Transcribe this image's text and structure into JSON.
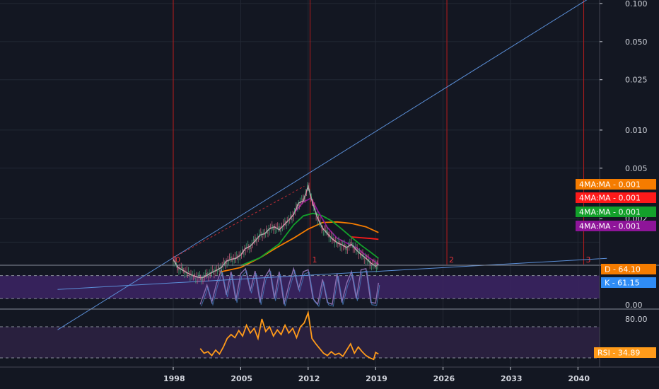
{
  "colors": {
    "background": "#131722",
    "grid": "#232834",
    "axis_text": "#d1d4dc",
    "cycle_line": "#b71c1c",
    "trend_line": "#5b8fd8",
    "price": "#c6aab9",
    "ma_orange": "#f57c00",
    "ma_red": "#ff1a1a",
    "ma_green": "#13a12b",
    "ma_purple": "#8e1599",
    "stoch_band": "#3b2362",
    "stoch_line": "#8b6fb0",
    "stoch_k": "#2f8cf5",
    "rsi_band": "#2a2140",
    "rsi_line": "#ff9b1a"
  },
  "chart_data": [
    {
      "type": "line",
      "pane": "price",
      "scale": "log",
      "y_axis_ticks": [
        "0.100",
        "0.050",
        "0.025",
        "0.010",
        "0.005",
        "0.002"
      ],
      "x_axis_ticks": [
        "1998",
        "2005",
        "2012",
        "2019",
        "2026",
        "2033",
        "2040"
      ],
      "xlim": [
        1998,
        2041
      ],
      "ylim": [
        0.0004,
        0.11
      ],
      "cycle_markers": [
        {
          "label": "0",
          "x": 1998
        },
        {
          "label": "1",
          "x": 2012.2
        },
        {
          "label": "2",
          "x": 2026.4
        },
        {
          "label": "3",
          "x": 2040.6
        }
      ],
      "series": [
        {
          "name": "price",
          "x": [
            1998,
            1998.5,
            1999,
            1999.5,
            2000,
            2000.5,
            2001,
            2001.5,
            2002,
            2002.5,
            2003,
            2003.5,
            2004,
            2004.5,
            2005,
            2005.5,
            2006,
            2006.5,
            2007,
            2007.5,
            2008,
            2008.5,
            2009,
            2009.5,
            2010,
            2010.5,
            2011,
            2011.5,
            2012,
            2012.5,
            2013,
            2013.5,
            2014,
            2014.5,
            2015,
            2015.5,
            2016,
            2016.5,
            2017,
            2017.5,
            2018,
            2018.5,
            2019,
            2019.3
          ],
          "y": [
            0.00095,
            0.00082,
            0.00078,
            0.00074,
            0.00071,
            0.00069,
            0.00068,
            0.00071,
            0.00075,
            0.00078,
            0.00082,
            0.00092,
            0.00095,
            0.00097,
            0.00103,
            0.00116,
            0.00121,
            0.00133,
            0.00148,
            0.00152,
            0.00166,
            0.00172,
            0.00163,
            0.00178,
            0.00195,
            0.00215,
            0.00265,
            0.00275,
            0.0036,
            0.0026,
            0.002,
            0.00168,
            0.00152,
            0.00138,
            0.00129,
            0.00124,
            0.00118,
            0.00125,
            0.00113,
            0.00104,
            0.00097,
            0.00089,
            0.00084,
            0.00087
          ]
        },
        {
          "name": "4MA:MA",
          "value": "0.001",
          "color": "#f57c00",
          "x": [
            2003,
            2005,
            2007,
            2009,
            2010.5,
            2012,
            2013.5,
            2015,
            2016.5,
            2018,
            2019.3
          ],
          "y": [
            0.00076,
            0.00082,
            0.00098,
            0.00121,
            0.0014,
            0.00165,
            0.00186,
            0.00188,
            0.00183,
            0.00172,
            0.00155
          ]
        },
        {
          "name": "4MA:MA",
          "value": "0.001",
          "color": "#ff1a1a",
          "x": [
            2016.5,
            2017.5,
            2018.5,
            2019.3
          ],
          "y": [
            0.00143,
            0.00141,
            0.00139,
            0.00137
          ]
        },
        {
          "name": "4MA:MA",
          "value": "0.001",
          "color": "#13a12b",
          "x": [
            2005,
            2007,
            2009,
            2010.5,
            2011.5,
            2012.5,
            2013.5,
            2014.5,
            2015.5,
            2016.5,
            2017.5,
            2018.5,
            2019.3
          ],
          "y": [
            0.00085,
            0.00098,
            0.00126,
            0.00178,
            0.0021,
            0.0022,
            0.0021,
            0.0019,
            0.00165,
            0.00142,
            0.00123,
            0.00108,
            0.00097
          ]
        },
        {
          "name": "4MA:MA",
          "value": "0.001",
          "color": "#8e1599",
          "x": [
            2010.5,
            2011.5,
            2012.3,
            2013,
            2014,
            2015,
            2016,
            2017,
            2018,
            2019.3
          ],
          "y": [
            0.0022,
            0.0027,
            0.0029,
            0.0023,
            0.0017,
            0.0014,
            0.00128,
            0.00118,
            0.00102,
            0.00087
          ]
        }
      ],
      "trend_lines": [
        {
          "x": [
            1998,
            2041
          ],
          "y": [
            0.00098,
            0.108
          ]
        },
        {
          "x": [
            1998,
            2041
          ],
          "y": [
            0.00062,
            0.00095
          ]
        }
      ]
    },
    {
      "type": "line",
      "pane": "stochastic",
      "y_axis_ticks": [
        "0.00"
      ],
      "band": [
        20,
        80
      ],
      "series": [
        {
          "name": "D",
          "value": "64.10",
          "color": "#f57c00"
        },
        {
          "name": "K",
          "value": "61.15",
          "color": "#2f8cf5",
          "x": [
            2000.8,
            2001.5,
            2002,
            2002.5,
            2003,
            2003.5,
            2004,
            2004.5,
            2005,
            2005.5,
            2006,
            2006.5,
            2007,
            2007.5,
            2008,
            2008.5,
            2009,
            2009.5,
            2010,
            2010.5,
            2011,
            2011.5,
            2012,
            2012.5,
            2013,
            2013.5,
            2014,
            2014.5,
            2015,
            2015.5,
            2016,
            2016.5,
            2017,
            2017.5,
            2018,
            2018.5,
            2019,
            2019.3
          ],
          "y": [
            5,
            55,
            10,
            60,
            95,
            30,
            90,
            15,
            85,
            98,
            40,
            92,
            10,
            75,
            96,
            20,
            90,
            5,
            55,
            98,
            45,
            90,
            95,
            20,
            5,
            70,
            10,
            5,
            85,
            10,
            60,
            90,
            20,
            95,
            98,
            10,
            8,
            61
          ]
        }
      ]
    },
    {
      "type": "line",
      "pane": "rsi",
      "y_axis_ticks": [
        "80.00"
      ],
      "band": [
        30,
        70
      ],
      "series": [
        {
          "name": "RSI",
          "value": "34.89",
          "color": "#ff9b1a",
          "x": [
            2000.8,
            2001.2,
            2001.6,
            2002,
            2002.4,
            2002.8,
            2003.2,
            2003.6,
            2004,
            2004.4,
            2004.8,
            2005.2,
            2005.6,
            2006,
            2006.4,
            2006.8,
            2007.2,
            2007.6,
            2008,
            2008.4,
            2008.8,
            2009.2,
            2009.6,
            2010,
            2010.4,
            2010.8,
            2011.2,
            2011.6,
            2012,
            2012.4,
            2012.8,
            2013.2,
            2013.6,
            2014,
            2014.4,
            2014.8,
            2015.2,
            2015.6,
            2016,
            2016.4,
            2016.8,
            2017.2,
            2017.6,
            2018,
            2018.4,
            2018.8,
            2019,
            2019.3
          ],
          "y": [
            42,
            36,
            38,
            33,
            40,
            35,
            44,
            55,
            60,
            56,
            65,
            58,
            72,
            62,
            68,
            55,
            80,
            64,
            70,
            58,
            66,
            60,
            72,
            62,
            68,
            56,
            70,
            75,
            88,
            55,
            48,
            42,
            36,
            33,
            38,
            34,
            36,
            32,
            40,
            48,
            36,
            44,
            38,
            33,
            30,
            28,
            37,
            35
          ]
        }
      ]
    }
  ]
}
